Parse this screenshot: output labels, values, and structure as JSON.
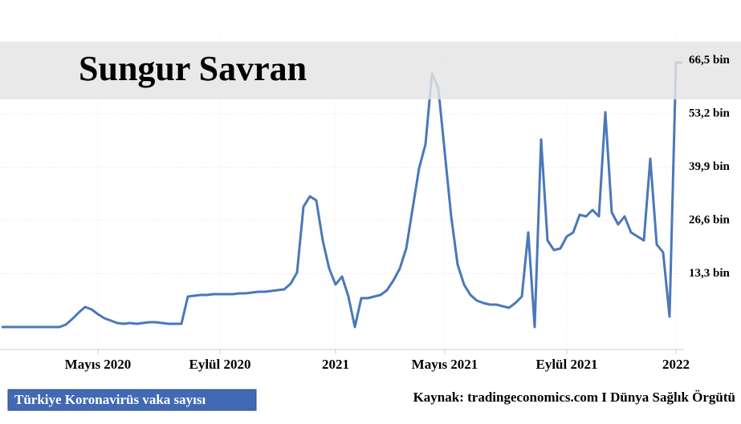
{
  "chart_data": {
    "type": "line",
    "overlay_title": "Sungur Savran",
    "source": "Kaynak: tradingeconomics.com I Dünya Sağlık Örgütü",
    "categories": [
      null,
      null,
      null,
      null,
      null,
      null,
      null,
      null,
      null,
      null,
      null,
      null,
      null,
      null,
      null,
      "Mayıs 2020",
      null,
      null,
      null,
      null,
      null,
      null,
      null,
      null,
      null,
      null,
      null,
      null,
      null,
      null,
      null,
      null,
      null,
      null,
      "Eylül 2020",
      null,
      null,
      null,
      null,
      null,
      null,
      null,
      null,
      null,
      null,
      null,
      null,
      null,
      null,
      null,
      null,
      null,
      "2021",
      null,
      null,
      null,
      null,
      null,
      null,
      null,
      null,
      null,
      null,
      null,
      null,
      null,
      null,
      null,
      null,
      "Mayıs 2021",
      null,
      null,
      null,
      null,
      null,
      null,
      null,
      null,
      null,
      null,
      null,
      null,
      null,
      null,
      null,
      null,
      null,
      null,
      "Eylül 2021",
      null,
      null,
      null,
      null,
      null,
      null,
      null,
      null,
      null,
      null,
      null,
      null,
      null,
      null,
      null,
      null,
      "2022",
      null
    ],
    "series": [
      {
        "name": "Türkiye Koronavirüs vaka sayısı",
        "color": "#4a78b8",
        "values": [
          0,
          0,
          0,
          0,
          0,
          0,
          0,
          0,
          0,
          0,
          0.6,
          2,
          3.6,
          5,
          4.4,
          3.2,
          2.2,
          1.6,
          1,
          0.8,
          1,
          0.8,
          1,
          1.2,
          1.2,
          1,
          0.8,
          0.8,
          0.8,
          7.6,
          7.8,
          8,
          8,
          8.2,
          8.2,
          8.2,
          8.2,
          8.4,
          8.4,
          8.6,
          8.8,
          8.8,
          9,
          9.2,
          9.4,
          10.8,
          13.6,
          30,
          32.6,
          31.6,
          21.6,
          14.6,
          10.6,
          12.6,
          7.6,
          0,
          7.2,
          7.2,
          7.6,
          8,
          9.2,
          11.6,
          14.6,
          19.6,
          29.6,
          39.6,
          45.6,
          63.2,
          59.6,
          43.6,
          27.6,
          15.6,
          10.6,
          8,
          6.6,
          6,
          5.6,
          5.6,
          5.2,
          4.8,
          6,
          7.6,
          23.6,
          0,
          46.8,
          21.6,
          19.2,
          19.6,
          22.6,
          23.6,
          28,
          27.6,
          29.2,
          27.6,
          53.6,
          28.6,
          25.6,
          27.6,
          23.6,
          22.6,
          21.6,
          42,
          20.6,
          18.6,
          2.6,
          66,
          66
        ]
      }
    ],
    "ylim": [
      -5.6,
      72.6
    ],
    "yticks": [
      {
        "value": 13.3,
        "label": "13,3 bin"
      },
      {
        "value": 26.6,
        "label": "26,6 bin"
      },
      {
        "value": 39.9,
        "label": "39,9 bin"
      },
      {
        "value": 53.2,
        "label": "53,2 bin"
      },
      {
        "value": 66.5,
        "label": "66,5 bin"
      }
    ],
    "grid": true
  }
}
